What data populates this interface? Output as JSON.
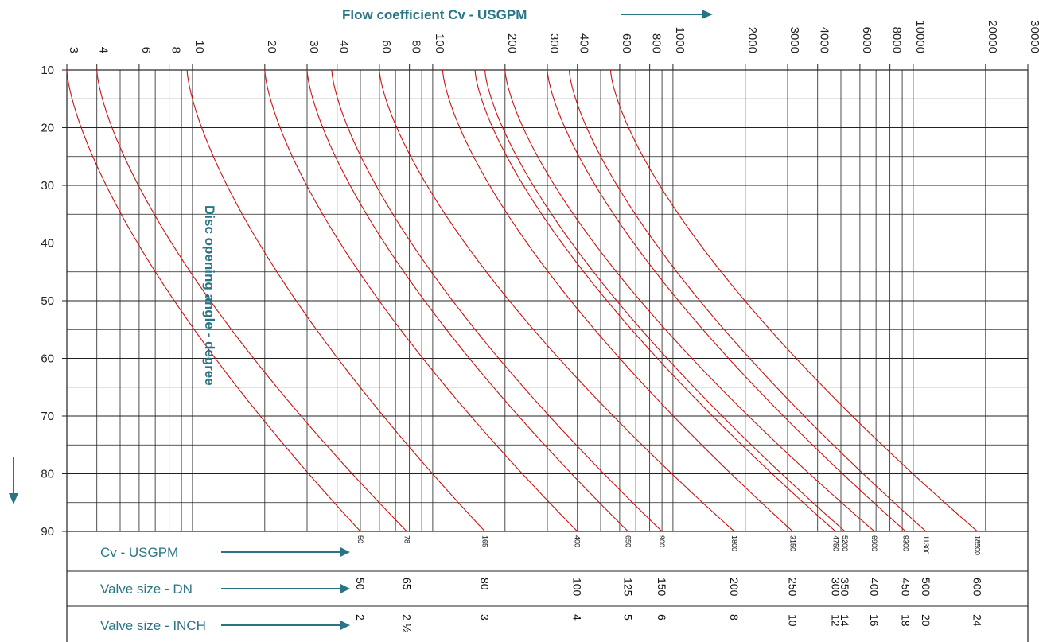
{
  "chart_data": {
    "type": "line",
    "title": "",
    "xlabel": "Flow coefficient Cv - USGPM",
    "ylabel": "Disc opening angle - degree",
    "x_scale": "log",
    "xlim": [
      3,
      30000
    ],
    "ylim": [
      10,
      90
    ],
    "x_ticks": [
      3,
      4,
      6,
      8,
      10,
      20,
      30,
      40,
      60,
      80,
      100,
      200,
      300,
      400,
      600,
      800,
      1000,
      2000,
      3000,
      4000,
      6000,
      8000,
      10000,
      20000,
      30000
    ],
    "x_tick_labels": [
      "3",
      "4",
      "6",
      "8",
      "10",
      "20",
      "30",
      "40",
      "60",
      "80",
      "100",
      "200",
      "300",
      "400",
      "600",
      "800",
      "1000",
      "2000",
      "3000",
      "4000",
      "6000",
      "8000",
      "10000",
      "20000",
      "30000"
    ],
    "y_ticks": [
      10,
      20,
      30,
      40,
      50,
      60,
      70,
      80,
      90
    ],
    "y_tick_labels": [
      "10",
      "20",
      "30",
      "40",
      "50",
      "60",
      "70",
      "80",
      "90"
    ],
    "grid": true,
    "series_color": "#cc1111",
    "series": [
      {
        "dn": "50",
        "cv_max": 50,
        "cv_at_10": 3
      },
      {
        "dn": "65",
        "cv_max": 78,
        "cv_at_10": 4
      },
      {
        "dn": "80",
        "cv_max": 165,
        "cv_at_10": 9.5
      },
      {
        "dn": "100",
        "cv_max": 400,
        "cv_at_10": 20
      },
      {
        "dn": "125",
        "cv_max": 650,
        "cv_at_10": 30
      },
      {
        "dn": "150",
        "cv_max": 900,
        "cv_at_10": 38
      },
      {
        "dn": "200",
        "cv_max": 1800,
        "cv_at_10": 60
      },
      {
        "dn": "250",
        "cv_max": 3150,
        "cv_at_10": 110
      },
      {
        "dn": "300",
        "cv_max": 4750,
        "cv_at_10": 150
      },
      {
        "dn": "350",
        "cv_max": 5200,
        "cv_at_10": 165
      },
      {
        "dn": "400",
        "cv_max": 6900,
        "cv_at_10": 200
      },
      {
        "dn": "450",
        "cv_max": 9300,
        "cv_at_10": 300
      },
      {
        "dn": "500",
        "cv_max": 11300,
        "cv_at_10": 370
      },
      {
        "dn": "600",
        "cv_max": 18500,
        "cv_at_10": 550
      }
    ]
  },
  "table": {
    "row_cv_label": "Cv - USGPM",
    "row_dn_label": "Valve size - DN",
    "row_inch_label": "Valve size - INCH",
    "columns": [
      {
        "cv": "50",
        "dn": "50",
        "inch": "2"
      },
      {
        "cv": "78",
        "dn": "65",
        "inch": "2 ½"
      },
      {
        "cv": "165",
        "dn": "80",
        "inch": "3"
      },
      {
        "cv": "400",
        "dn": "100",
        "inch": "4"
      },
      {
        "cv": "650",
        "dn": "125",
        "inch": "5"
      },
      {
        "cv": "900",
        "dn": "150",
        "inch": "6"
      },
      {
        "cv": "1800",
        "dn": "200",
        "inch": "8"
      },
      {
        "cv": "3150",
        "dn": "250",
        "inch": "10"
      },
      {
        "cv": "4750",
        "dn": "300",
        "inch": "12"
      },
      {
        "cv": "5200",
        "dn": "350",
        "inch": "14"
      },
      {
        "cv": "6900",
        "dn": "400",
        "inch": "16"
      },
      {
        "cv": "9300",
        "dn": "450",
        "inch": "18"
      },
      {
        "cv": "11300",
        "dn": "500",
        "inch": "20"
      },
      {
        "cv": "18500",
        "dn": "600",
        "inch": "24"
      }
    ]
  },
  "colors": {
    "accent": "#2a7585",
    "curve": "#cc1111",
    "grid": "#222222"
  }
}
